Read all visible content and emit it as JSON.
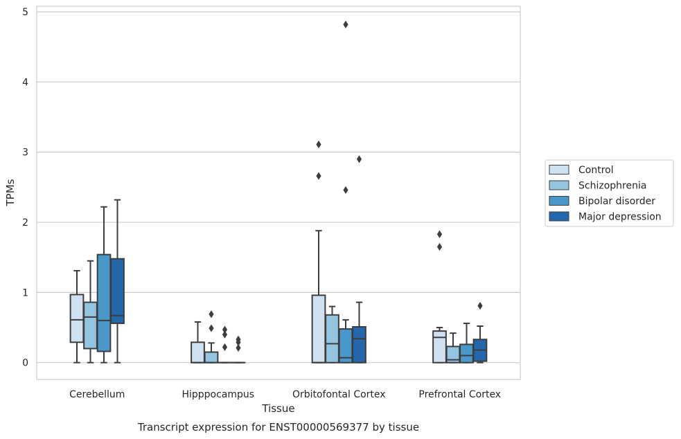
{
  "caption": "Transcript expression for ENST00000569377 by tissue",
  "chart_data": {
    "type": "boxplot",
    "xlabel": "Tissue",
    "ylabel": "TPMs",
    "ylim": [
      -0.24,
      5.08
    ],
    "yticks": [
      0,
      1,
      2,
      3,
      4,
      5
    ],
    "grid": true,
    "legend_position": "right",
    "categories": [
      "Cerebellum",
      "Hipppocampus",
      "Orbitofontal Cortex",
      "Prefrontal Cortex"
    ],
    "series": [
      {
        "name": "Control",
        "color": "#d0e1f2",
        "boxes": [
          {
            "whislo": 0,
            "q1": 0.29,
            "med": 0.61,
            "q3": 0.97,
            "whishi": 1.31,
            "fliers": []
          },
          {
            "whislo": 0,
            "q1": 0,
            "med": 0,
            "q3": 0.29,
            "whishi": 0.58,
            "fliers": []
          },
          {
            "whislo": 0,
            "q1": 0,
            "med": 0,
            "q3": 0.96,
            "whishi": 1.88,
            "fliers": [
              2.66,
              3.11
            ]
          },
          {
            "whislo": 0,
            "q1": 0,
            "med": 0.36,
            "q3": 0.45,
            "whishi": 0.5,
            "fliers": [
              1.65,
              1.83
            ]
          }
        ]
      },
      {
        "name": "Schizophrenia",
        "color": "#94c4df",
        "boxes": [
          {
            "whislo": 0,
            "q1": 0.2,
            "med": 0.65,
            "q3": 0.86,
            "whishi": 1.45,
            "fliers": []
          },
          {
            "whislo": 0,
            "q1": 0,
            "med": 0,
            "q3": 0.15,
            "whishi": 0.28,
            "fliers": [
              0.49,
              0.69
            ]
          },
          {
            "whislo": 0,
            "q1": 0,
            "med": 0.27,
            "q3": 0.68,
            "whishi": 0.8,
            "fliers": []
          },
          {
            "whislo": 0,
            "q1": 0,
            "med": 0.04,
            "q3": 0.23,
            "whishi": 0.42,
            "fliers": []
          }
        ]
      },
      {
        "name": "Bipolar disorder",
        "color": "#4a98c9",
        "boxes": [
          {
            "whislo": 0,
            "q1": 0.16,
            "med": 0.6,
            "q3": 1.54,
            "whishi": 2.22,
            "fliers": []
          },
          {
            "whislo": 0,
            "q1": 0,
            "med": 0,
            "q3": 0,
            "whishi": 0,
            "fliers": [
              0.22,
              0.4,
              0.47
            ]
          },
          {
            "whislo": 0,
            "q1": 0,
            "med": 0.07,
            "q3": 0.48,
            "whishi": 0.61,
            "fliers": [
              2.46,
              4.82
            ]
          },
          {
            "whislo": 0,
            "q1": 0,
            "med": 0.1,
            "q3": 0.26,
            "whishi": 0.56,
            "fliers": []
          }
        ]
      },
      {
        "name": "Major depression",
        "color": "#2367ac",
        "boxes": [
          {
            "whislo": 0,
            "q1": 0.56,
            "med": 0.67,
            "q3": 1.48,
            "whishi": 2.32,
            "fliers": []
          },
          {
            "whislo": 0,
            "q1": 0,
            "med": 0,
            "q3": 0,
            "whishi": 0,
            "fliers": [
              0.21,
              0.29,
              0.33
            ]
          },
          {
            "whislo": 0,
            "q1": 0,
            "med": 0.34,
            "q3": 0.51,
            "whishi": 0.86,
            "fliers": [
              2.9
            ]
          },
          {
            "whislo": 0,
            "q1": 0.02,
            "med": 0.18,
            "q3": 0.33,
            "whishi": 0.52,
            "fliers": [
              0.81
            ]
          }
        ]
      }
    ]
  }
}
